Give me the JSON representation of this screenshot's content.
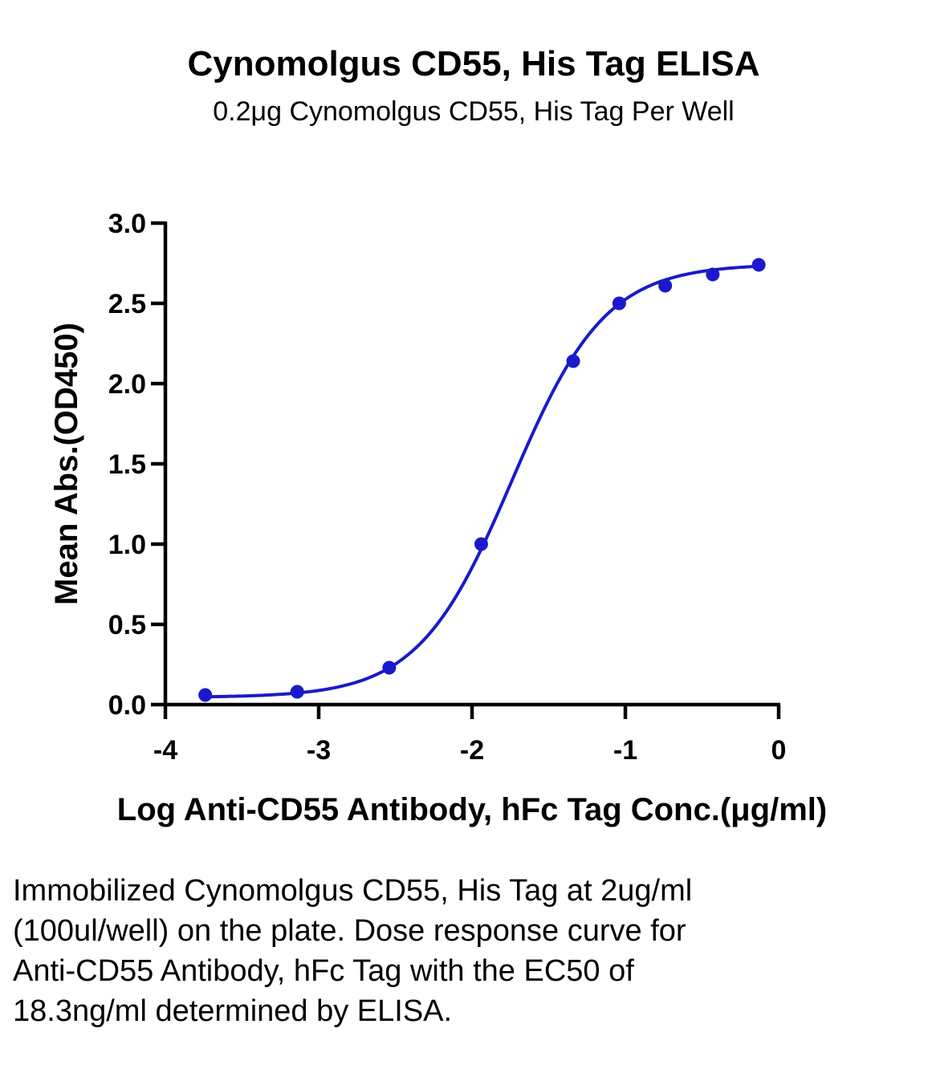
{
  "chart_data": {
    "type": "scatter",
    "title": "Cynomolgus CD55, His Tag ELISA",
    "subtitle": "0.2μg Cynomolgus CD55, His Tag Per Well",
    "xlabel": "Log Anti-CD55 Antibody, hFc Tag Conc.(μg/ml)",
    "ylabel": "Mean Abs.(OD450)",
    "xlim": [
      -4,
      0
    ],
    "ylim": [
      0,
      3.0
    ],
    "x_ticks": [
      "-4",
      "-3",
      "-2",
      "-1",
      "0"
    ],
    "y_ticks": [
      "0.0",
      "0.5",
      "1.0",
      "1.5",
      "2.0",
      "2.5",
      "3.0"
    ],
    "grid": false,
    "series": [
      {
        "color": "#1a1acc",
        "x": [
          -3.74,
          -3.14,
          -2.54,
          -1.94,
          -1.34,
          -1.04,
          -0.74,
          -0.43,
          -0.13
        ],
        "y": [
          0.06,
          0.08,
          0.23,
          1.0,
          2.14,
          2.5,
          2.61,
          2.68,
          2.74
        ],
        "fit": {
          "model": "4PL",
          "bottom": 0.045,
          "top": 2.745,
          "logEC50": -1.74,
          "hill": 1.42
        }
      }
    ]
  },
  "caption": "Immobilized Cynomolgus CD55, His Tag at 2ug/ml (100ul/well) on the plate. Dose response curve for Anti-CD55 Antibody, hFc Tag with the EC50 of 18.3ng/ml determined by ELISA."
}
